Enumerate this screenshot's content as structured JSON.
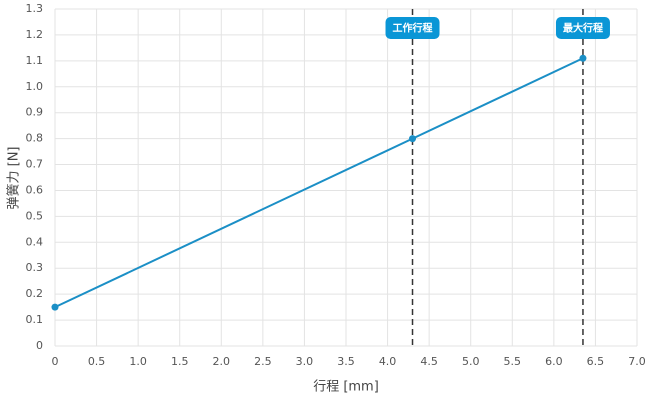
{
  "chart_data": {
    "type": "line",
    "xlabel": "行程 [mm]",
    "ylabel": "弹簧力 [N]",
    "x": [
      0,
      4.3,
      6.35
    ],
    "series": [
      {
        "name": "弹簧力",
        "color": "#1b8fc6",
        "values": [
          0.15,
          0.8,
          1.11
        ]
      }
    ],
    "xlim": [
      0,
      7
    ],
    "xticks": [
      0,
      0.5,
      {
        "value": 1,
        "label": "1.0"
      },
      1.5,
      {
        "value": 2,
        "label": "2.0"
      },
      2.5,
      {
        "value": 3,
        "label": "3.0"
      },
      3.5,
      {
        "value": 4,
        "label": "4.0"
      },
      4.5,
      {
        "value": 5,
        "label": "5.0"
      },
      5.5,
      {
        "value": 6,
        "label": "6.0"
      },
      6.5,
      {
        "value": 7,
        "label": "7.0"
      }
    ],
    "ylim": [
      0,
      1.3
    ],
    "yticks": [
      0,
      0.1,
      0.2,
      0.3,
      0.4,
      0.5,
      0.6,
      0.7,
      0.8,
      0.9,
      {
        "value": 1,
        "label": "1.0"
      },
      1.1,
      1.2,
      1.3
    ],
    "grid": true,
    "annotations": [
      {
        "x": 4.3,
        "label": "工作行程"
      },
      {
        "x": 6.35,
        "label": "最大行程"
      }
    ]
  }
}
